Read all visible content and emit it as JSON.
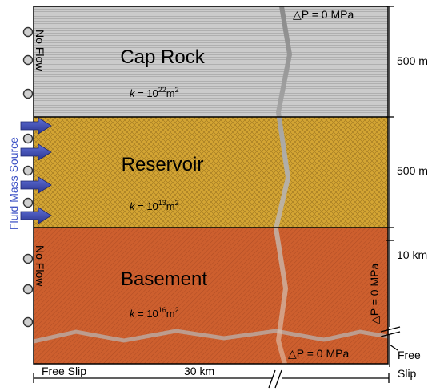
{
  "layers": [
    {
      "name": "Cap Rock",
      "k_prefix": "k",
      "k_eq": " = 10",
      "k_exp": "22",
      "k_unit": "m",
      "k_unit_exp": "2",
      "thickness": "500 m",
      "fill": "#c8c8c8",
      "pattern": "horizontal-lines"
    },
    {
      "name": "Reservoir",
      "k_prefix": "k",
      "k_eq": " = 10",
      "k_exp": "13",
      "k_unit": "m",
      "k_unit_exp": "2",
      "thickness": "500 m",
      "fill": "#d2a02e",
      "pattern": "crosshatch"
    },
    {
      "name": "Basement",
      "k_prefix": "k",
      "k_eq": " = 10",
      "k_exp": "16",
      "k_unit": "m",
      "k_unit_exp": "2",
      "thickness": "10 km",
      "fill": "#cc5d2b",
      "pattern": "diagonal-lines"
    }
  ],
  "boundary_conditions": {
    "top": "△P = 0 MPa",
    "right": "△P = 0 MPa",
    "bottom": "△P = 0 MPa",
    "left_top": "No Flow",
    "left_bottom": "No Flow",
    "left_source": "Fluid Mass Source",
    "bottom_slip": "Free Slip",
    "right_slip_line1": "Free",
    "right_slip_line2": "Slip"
  },
  "width_label": "30 km",
  "colors": {
    "source_arrow": "#3344aa",
    "source_label": "#3a4fc4",
    "fault_line": "#8a8a8a"
  },
  "icons": {
    "roller": "roller-support-icon",
    "arrow": "injection-arrow-icon",
    "break": "axis-break-icon"
  }
}
